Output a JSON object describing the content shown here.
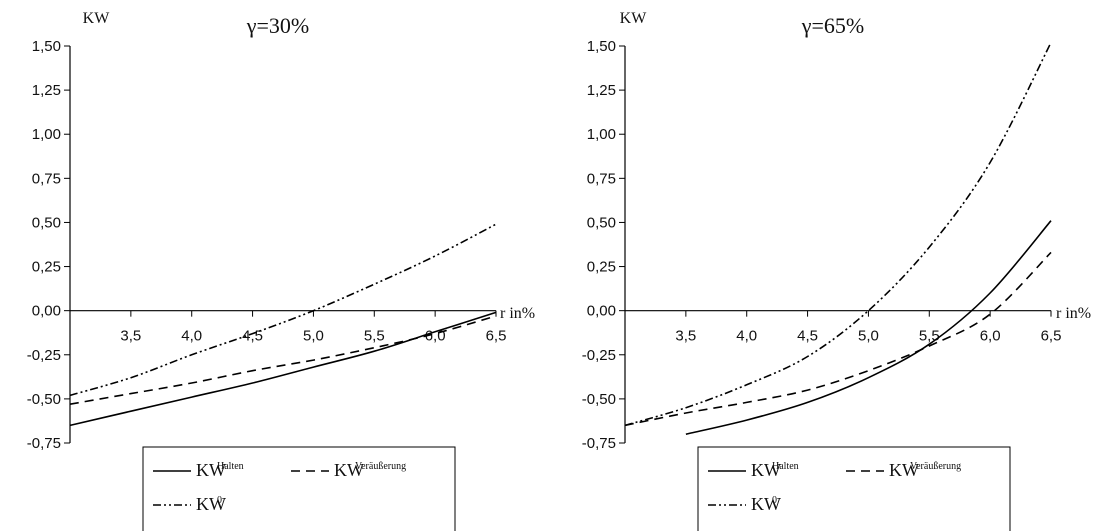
{
  "chart_data": [
    {
      "type": "line",
      "title": "γ=30%",
      "ylabel": "KW",
      "xlabel": "r in%",
      "ylim": [
        -0.75,
        1.5
      ],
      "xlim": [
        3.0,
        6.5
      ],
      "yticks": [
        "-0,75",
        "-0,50",
        "-0,25",
        "0,00",
        "0,25",
        "0,50",
        "0,75",
        "1,00",
        "1,25",
        "1,50"
      ],
      "xticks": [
        "3,5",
        "4,0",
        "4,5",
        "5,0",
        "5,5",
        "6,0",
        "6,5"
      ],
      "x": [
        3.0,
        3.5,
        4.0,
        4.5,
        5.0,
        5.5,
        6.0,
        6.5
      ],
      "series": [
        {
          "name": "KW",
          "sup": "Halten",
          "dash": "solid",
          "values": [
            -0.65,
            -0.57,
            -0.49,
            -0.41,
            -0.32,
            -0.23,
            -0.12,
            -0.01
          ]
        },
        {
          "name": "KW",
          "sup": "Veräußerung",
          "dash": "dashed",
          "values": [
            -0.53,
            -0.47,
            -0.41,
            -0.34,
            -0.28,
            -0.21,
            -0.13,
            -0.03
          ]
        },
        {
          "name": "KW",
          "sup": "0",
          "dash": "dashdotdot",
          "values": [
            -0.48,
            -0.38,
            -0.25,
            -0.13,
            0.0,
            0.15,
            0.31,
            0.49
          ]
        }
      ],
      "legend": "bottom"
    },
    {
      "type": "line",
      "title": "γ=65%",
      "ylabel": "KW",
      "xlabel": "r in%",
      "ylim": [
        -0.75,
        1.5
      ],
      "xlim": [
        3.0,
        6.5
      ],
      "yticks": [
        "-0,75",
        "-0,50",
        "-0,25",
        "0,00",
        "0,25",
        "0,50",
        "0,75",
        "1,00",
        "1,25",
        "1,50"
      ],
      "xticks": [
        "3,5",
        "4,0",
        "4,5",
        "5,0",
        "5,5",
        "6,0",
        "6,5"
      ],
      "x": [
        3.0,
        3.5,
        4.0,
        4.5,
        5.0,
        5.5,
        6.0,
        6.5
      ],
      "series": [
        {
          "name": "KW",
          "sup": "Halten",
          "dash": "solid",
          "values": [
            null,
            -0.7,
            -0.62,
            -0.52,
            -0.38,
            -0.19,
            0.1,
            0.51
          ]
        },
        {
          "name": "KW",
          "sup": "Veräußerung",
          "dash": "dashed",
          "values": [
            -0.65,
            -0.58,
            -0.52,
            -0.45,
            -0.34,
            -0.2,
            -0.02,
            0.33
          ]
        },
        {
          "name": "KW",
          "sup": "0",
          "dash": "dashdotdot",
          "values": [
            -0.65,
            -0.55,
            -0.42,
            -0.26,
            0.0,
            0.36,
            0.84,
            1.52
          ]
        }
      ],
      "legend": "bottom"
    }
  ]
}
